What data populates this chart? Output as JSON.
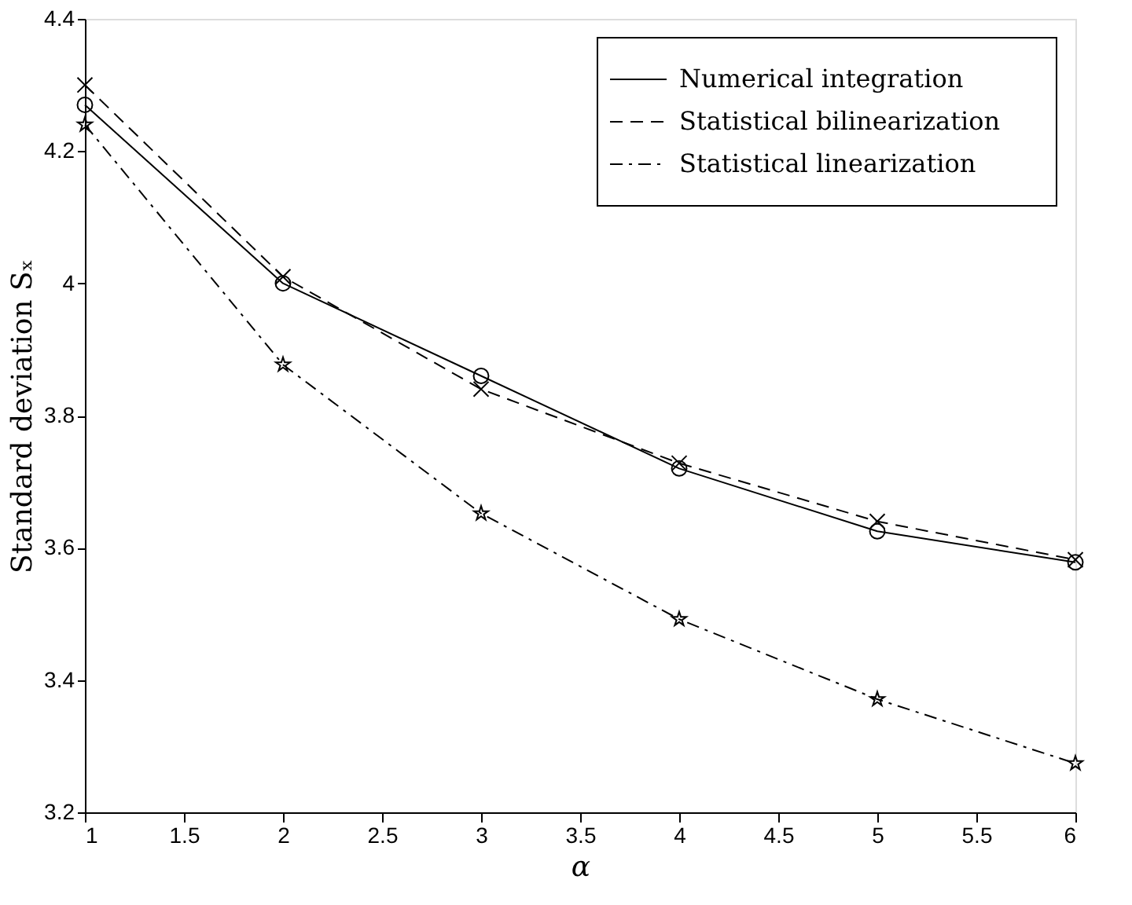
{
  "chart_data": {
    "type": "line",
    "xlabel": "α",
    "ylabel": "Standard deviation Sₓ",
    "x": [
      1,
      2,
      3,
      4,
      5,
      6
    ],
    "series": [
      {
        "name": "Numerical integration",
        "color": "#000000",
        "line_style": "solid",
        "marker": "circle",
        "values": [
          4.27,
          4.0,
          3.86,
          3.72,
          3.625,
          3.578
        ]
      },
      {
        "name": "Statistical bilinearization",
        "color": "#000000",
        "line_style": "dashed",
        "marker": "cross",
        "values": [
          4.3,
          4.01,
          3.84,
          3.728,
          3.64,
          3.582
        ]
      },
      {
        "name": "Statistical linearization",
        "color": "#000000",
        "line_style": "dashdot",
        "marker": "star",
        "values": [
          4.24,
          3.877,
          3.652,
          3.492,
          3.371,
          3.274
        ]
      }
    ],
    "xlim": [
      1,
      6
    ],
    "xticks": [
      1,
      1.5,
      2,
      2.5,
      3,
      3.5,
      4,
      4.5,
      5,
      5.5,
      6
    ],
    "ylim": [
      3.2,
      4.4
    ],
    "yticks": [
      3.2,
      3.4,
      3.6,
      3.8,
      4,
      4.2,
      4.4
    ],
    "grid": false,
    "legend": "top right"
  }
}
